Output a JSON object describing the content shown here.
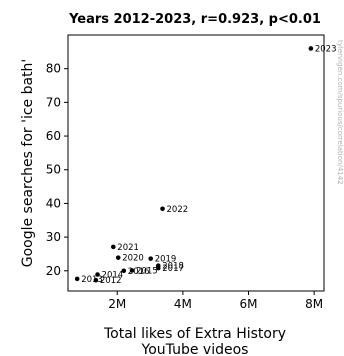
{
  "chart_data": {
    "type": "scatter",
    "title": "Years 2012-2023, r=0.923, p<0.01",
    "xlabel": [
      "Total likes of Extra History",
      "YouTube videos"
    ],
    "ylabel": "Google searches for 'ice bath'",
    "xlim": [
      500000,
      8300000
    ],
    "ylim": [
      14,
      90
    ],
    "x_ticks": [
      {
        "value": 2000000,
        "label": "2M"
      },
      {
        "value": 4000000,
        "label": "4M"
      },
      {
        "value": 6000000,
        "label": "6M"
      },
      {
        "value": 8000000,
        "label": "8M"
      }
    ],
    "y_ticks": [
      {
        "value": 20,
        "label": "20"
      },
      {
        "value": 30,
        "label": "30"
      },
      {
        "value": 40,
        "label": "40"
      },
      {
        "value": 50,
        "label": "50"
      },
      {
        "value": 60,
        "label": "60"
      },
      {
        "value": 70,
        "label": "70"
      },
      {
        "value": 80,
        "label": "80"
      }
    ],
    "grid": false,
    "points": [
      {
        "label": "2012",
        "x": 1350000,
        "y": 17.2
      },
      {
        "label": "2013",
        "x": 780000,
        "y": 17.6
      },
      {
        "label": "2014",
        "x": 1400000,
        "y": 18.9
      },
      {
        "label": "2015",
        "x": 2450000,
        "y": 20.1
      },
      {
        "label": "2016",
        "x": 2200000,
        "y": 20.0
      },
      {
        "label": "2017",
        "x": 3250000,
        "y": 20.8
      },
      {
        "label": "2018",
        "x": 3250000,
        "y": 21.5
      },
      {
        "label": "2019",
        "x": 3020000,
        "y": 23.6
      },
      {
        "label": "2020",
        "x": 2030000,
        "y": 23.9
      },
      {
        "label": "2021",
        "x": 1880000,
        "y": 27.1
      },
      {
        "label": "2022",
        "x": 3380000,
        "y": 38.4
      },
      {
        "label": "2023",
        "x": 7900000,
        "y": 86.0
      }
    ]
  },
  "credit": "tylervigen.com/spurious/correlation/4142"
}
